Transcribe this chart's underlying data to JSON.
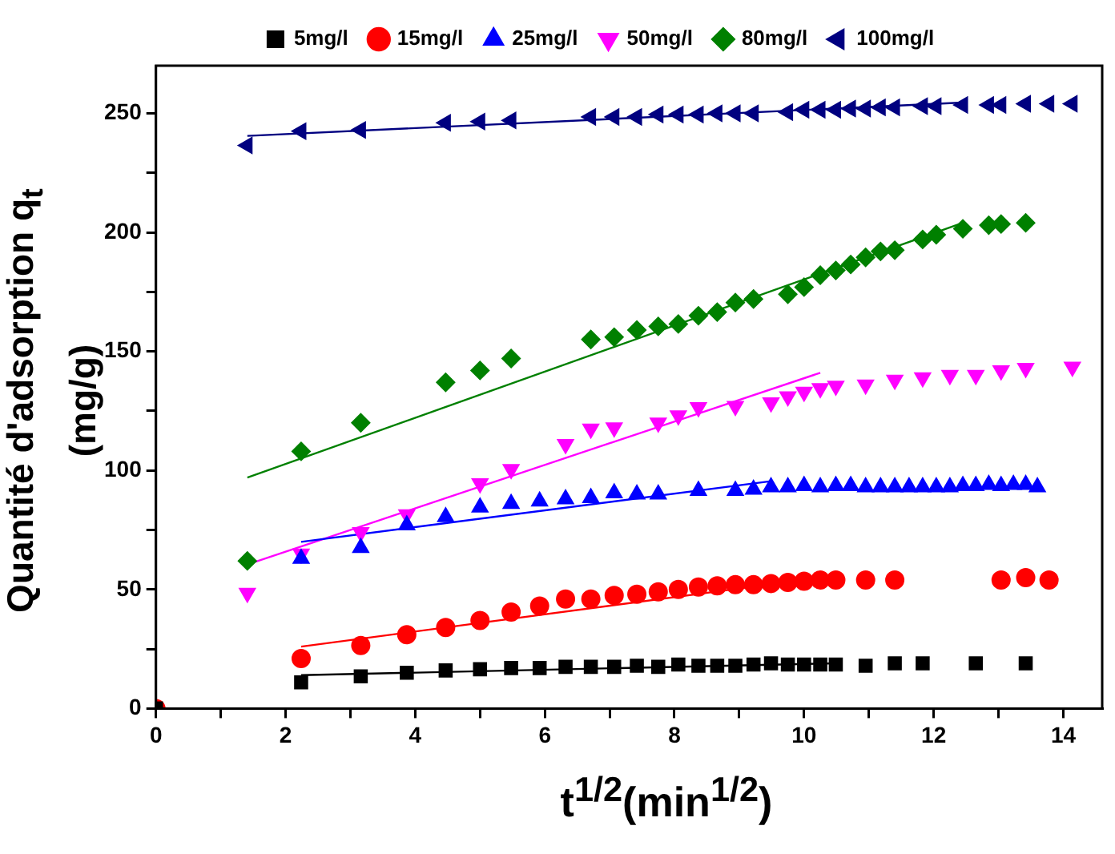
{
  "chart_data": {
    "type": "scatter",
    "xlabel": "t$^{1/2}$(min$^{1/2}$)",
    "ylabel": "Quantité d'adsorption q$_{t}$\n(mg/g)",
    "xlim": [
      0,
      14.6
    ],
    "ylim": [
      0,
      270
    ],
    "xticks": [
      0,
      {
        "value": 1,
        "label": null
      },
      2,
      {
        "value": 3,
        "label": null
      },
      4,
      {
        "value": 5,
        "label": null
      },
      6,
      {
        "value": 7,
        "label": null
      },
      8,
      {
        "value": 9,
        "label": null
      },
      10,
      {
        "value": 11,
        "label": null
      },
      12,
      {
        "value": 13,
        "label": null
      },
      14
    ],
    "yticks": [
      0,
      {
        "value": 25,
        "label": null
      },
      50,
      {
        "value": 75,
        "label": null
      },
      100,
      {
        "value": 125,
        "label": null
      },
      150,
      {
        "value": 175,
        "label": null
      },
      200,
      {
        "value": 225,
        "label": null
      },
      250
    ],
    "grid": false,
    "legend": "top",
    "series": [
      {
        "name": "5mg/l",
        "type": "scatter",
        "marker": "square",
        "color": "#000000",
        "x": [
          0,
          2.24,
          3.16,
          3.87,
          4.47,
          5,
          5.48,
          5.92,
          6.32,
          6.71,
          7.07,
          7.42,
          7.75,
          8.06,
          8.37,
          8.66,
          8.94,
          9.22,
          9.49,
          9.75,
          10,
          10.25,
          10.49,
          10.95,
          11.4,
          11.83,
          12.65,
          13.42
        ],
        "values": [
          0,
          11,
          13.5,
          15,
          16,
          16.5,
          17,
          17,
          17.5,
          17.5,
          17.5,
          18,
          17.5,
          18.5,
          18,
          18,
          18,
          18.5,
          19,
          18.5,
          18.5,
          18.5,
          18.5,
          18,
          19,
          19,
          19,
          19
        ]
      },
      {
        "name": "15mg/l",
        "type": "scatter",
        "marker": "circle",
        "color": "#ff0000",
        "x": [
          0,
          2.24,
          3.16,
          3.87,
          4.47,
          5,
          5.48,
          5.92,
          6.32,
          6.71,
          7.07,
          7.42,
          7.75,
          8.06,
          8.37,
          8.66,
          8.94,
          9.22,
          9.49,
          9.75,
          10,
          10.25,
          10.49,
          10.95,
          11.4,
          13.04,
          13.42,
          13.78
        ],
        "values": [
          0,
          21,
          26.5,
          31,
          34,
          37,
          40.5,
          43,
          46,
          46,
          47.5,
          48,
          49,
          50,
          51,
          51.5,
          52,
          52,
          52.5,
          53,
          53.5,
          54,
          54,
          54,
          54,
          54,
          55,
          54
        ]
      },
      {
        "name": "25mg/l",
        "type": "scatter",
        "marker": "triangle",
        "color": "#0000ff",
        "x": [
          2.24,
          3.16,
          3.87,
          4.47,
          5,
          5.48,
          5.92,
          6.32,
          6.71,
          7.07,
          7.42,
          7.75,
          8.37,
          8.94,
          9.22,
          9.49,
          9.75,
          10,
          10.25,
          10.49,
          10.72,
          10.95,
          11.18,
          11.4,
          11.62,
          11.83,
          12.04,
          12.25,
          12.45,
          12.65,
          12.85,
          13.04,
          13.23,
          13.42,
          13.6
        ],
        "values": [
          63,
          67.5,
          77,
          80.5,
          84.5,
          86,
          87,
          88,
          88.5,
          90.5,
          90,
          90,
          91.5,
          91.5,
          92,
          93,
          93,
          93.5,
          93,
          93.5,
          93.5,
          93,
          93,
          93,
          93,
          93,
          93,
          93,
          93.5,
          93.5,
          94,
          93.5,
          94,
          94,
          93
        ]
      },
      {
        "name": "50mg/l",
        "type": "scatter",
        "marker": "triangle-down",
        "color": "#ff00ff",
        "x": [
          1.41,
          2.24,
          3.16,
          3.87,
          5,
          5.48,
          6.32,
          6.71,
          7.07,
          7.75,
          8.06,
          8.37,
          8.94,
          9.49,
          9.75,
          10,
          10.25,
          10.49,
          10.95,
          11.4,
          11.83,
          12.25,
          12.65,
          13.04,
          13.42,
          14.14
        ],
        "values": [
          48.5,
          65,
          74,
          81.5,
          94.5,
          100.5,
          111,
          117.5,
          118,
          120,
          123,
          126.5,
          127,
          128.5,
          131,
          133,
          134.5,
          135.5,
          136,
          138,
          139,
          140,
          140,
          142,
          143,
          143.5
        ]
      },
      {
        "name": "80mg/l",
        "type": "scatter",
        "marker": "diamond",
        "color": "#008000",
        "x": [
          1.41,
          2.24,
          3.16,
          4.47,
          5,
          5.48,
          6.71,
          7.07,
          7.42,
          7.75,
          8.06,
          8.37,
          8.66,
          8.94,
          9.22,
          9.75,
          10,
          10.25,
          10.49,
          10.72,
          10.95,
          11.18,
          11.4,
          11.83,
          12.04,
          12.45,
          12.85,
          13.04,
          13.42
        ],
        "values": [
          62,
          108,
          120,
          137,
          142,
          147,
          155,
          156,
          159,
          160.5,
          161.5,
          165,
          166.5,
          170.5,
          172,
          174,
          177,
          182,
          184,
          186.5,
          189.5,
          192,
          192.5,
          197,
          199,
          201.5,
          203,
          203.5,
          204
        ]
      },
      {
        "name": "100mg/l",
        "type": "scatter",
        "marker": "triangle-left",
        "color": "#000080",
        "x": [
          1.41,
          2.24,
          3.16,
          4.47,
          5,
          5.48,
          6.71,
          7.07,
          7.42,
          7.75,
          8.06,
          8.37,
          8.66,
          8.94,
          9.22,
          9.75,
          10,
          10.25,
          10.49,
          10.72,
          10.95,
          11.18,
          11.4,
          11.83,
          12.04,
          12.45,
          12.85,
          13.04,
          13.42,
          13.78,
          14.14
        ],
        "values": [
          236.5,
          242.5,
          243,
          246,
          246.5,
          247,
          248.5,
          248.5,
          248.5,
          249.5,
          249.5,
          249.5,
          250,
          250,
          250,
          250.5,
          251.5,
          251.5,
          251.5,
          252,
          252,
          252.5,
          252.5,
          253,
          253,
          253.5,
          253.5,
          253.5,
          254,
          254,
          254
        ]
      },
      {
        "type": "line",
        "marker": "none",
        "color": "#000000",
        "x": [
          2.24,
          10.49
        ],
        "values": [
          14,
          19
        ]
      },
      {
        "type": "line",
        "marker": "none",
        "color": "#ff0000",
        "x": [
          2.24,
          10
        ],
        "values": [
          26,
          54
        ]
      },
      {
        "type": "line",
        "marker": "none",
        "color": "#0000ff",
        "x": [
          2.24,
          9.49
        ],
        "values": [
          70,
          95.5
        ]
      },
      {
        "type": "line",
        "marker": "none",
        "color": "#ff00ff",
        "x": [
          1.41,
          10.25
        ],
        "values": [
          60.5,
          141
        ]
      },
      {
        "type": "line",
        "marker": "none",
        "color": "#008000",
        "x": [
          1.41,
          12.45
        ],
        "values": [
          97,
          204
        ]
      },
      {
        "type": "line",
        "marker": "none",
        "color": "#000080",
        "x": [
          1.41,
          12.45
        ],
        "values": [
          240.5,
          254.5
        ]
      }
    ]
  }
}
